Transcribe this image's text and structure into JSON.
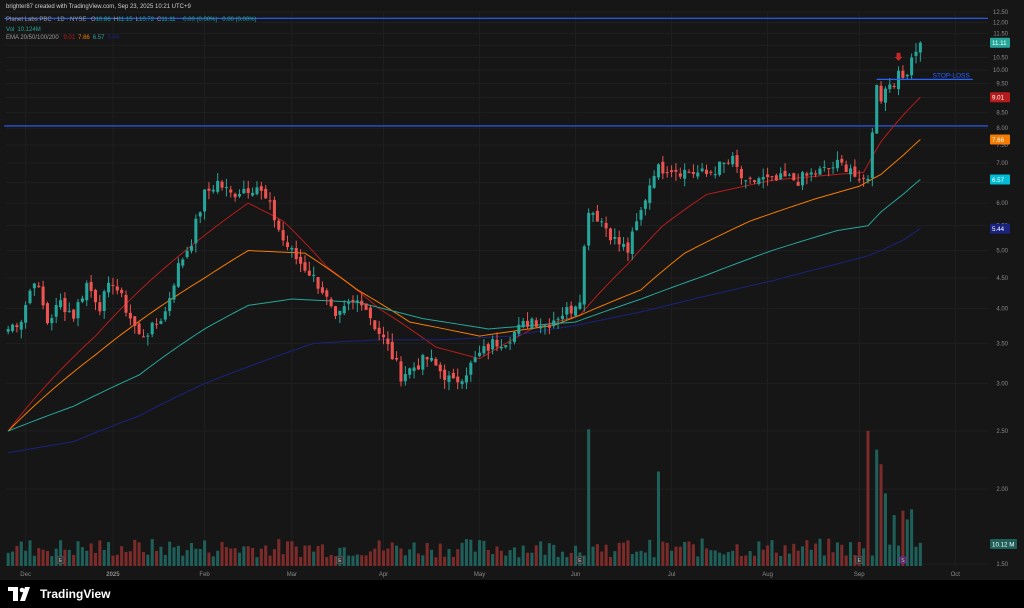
{
  "header": {
    "credit": "brighter87 created with TradingView.com, Sep 23, 2025 10:21 UTC+9",
    "symbol": "Planet Labs PBC · 1D · NYSE",
    "ohlc": [
      {
        "k": "O",
        "v": "10.86"
      },
      {
        "k": "H",
        "v": "11.15"
      },
      {
        "k": "L",
        "v": "10.72"
      },
      {
        "k": "C",
        "v": "11.11"
      }
    ],
    "change": "0.00 (0.00%)",
    "change2": "0.00 (0.00%)",
    "volume_label": "Vol",
    "volume_value": "10.124M",
    "ema_label": "EMA 20/50/100/200",
    "ema_values": [
      "9.01",
      "7.66",
      "6.57",
      "5.44"
    ]
  },
  "footer": {
    "brand": "TradingView"
  },
  "colors": {
    "background": "#161616",
    "up": "#26a69a",
    "down": "#ef5350",
    "vol_up": "#1f5f59",
    "vol_down": "#7a2b2a",
    "ema20": "#b71c1c",
    "ema50": "#f57c00",
    "ema100": "#26a69a",
    "ema200": "#1a237e",
    "hline": "#2962ff",
    "stoploss": "#2962ff"
  },
  "chart_data": {
    "type": "candlestick",
    "y_scale": "log",
    "ylim": [
      1.5,
      12.5
    ],
    "y_ticks": [
      "12.50",
      "12.00",
      "11.50",
      "11.00",
      "10.50",
      "10.00",
      "9.50",
      "9.00",
      "8.50",
      "8.00",
      "7.50",
      "7.00",
      "6.50",
      "6.00",
      "5.50",
      "5.00",
      "4.50",
      "4.00",
      "3.50",
      "3.00",
      "2.50",
      "2.00",
      "1.50"
    ],
    "x_labels": [
      "Dec",
      "2025",
      "Feb",
      "Mar",
      "Apr",
      "May",
      "Jun",
      "Jul",
      "Aug",
      "Sep",
      "Oct"
    ],
    "x_label_bars": [
      4,
      24,
      45,
      65,
      86,
      108,
      130,
      152,
      174,
      195,
      217
    ],
    "bars_total": 225,
    "bars_visible": 210,
    "anchors": [
      [
        0,
        3.7
      ],
      [
        3,
        3.85
      ],
      [
        6,
        4.5
      ],
      [
        9,
        3.8
      ],
      [
        12,
        4.1
      ],
      [
        15,
        3.9
      ],
      [
        18,
        4.4
      ],
      [
        21,
        4.05
      ],
      [
        24,
        4.45
      ],
      [
        27,
        4.0
      ],
      [
        30,
        3.6
      ],
      [
        33,
        3.7
      ],
      [
        36,
        3.95
      ],
      [
        39,
        4.7
      ],
      [
        42,
        5.2
      ],
      [
        45,
        6.2
      ],
      [
        48,
        6.5
      ],
      [
        51,
        6.2
      ],
      [
        54,
        6.35
      ],
      [
        57,
        6.4
      ],
      [
        60,
        5.9
      ],
      [
        63,
        5.2
      ],
      [
        66,
        4.85
      ],
      [
        69,
        4.6
      ],
      [
        72,
        4.3
      ],
      [
        75,
        3.8
      ],
      [
        78,
        4.05
      ],
      [
        81,
        4.15
      ],
      [
        84,
        3.75
      ],
      [
        87,
        3.45
      ],
      [
        90,
        3.1
      ],
      [
        93,
        3.2
      ],
      [
        96,
        3.3
      ],
      [
        99,
        3.15
      ],
      [
        102,
        3.0
      ],
      [
        105,
        3.15
      ],
      [
        108,
        3.35
      ],
      [
        111,
        3.5
      ],
      [
        114,
        3.55
      ],
      [
        117,
        3.7
      ],
      [
        120,
        3.85
      ],
      [
        123,
        3.75
      ],
      [
        126,
        3.9
      ],
      [
        129,
        4.0
      ],
      [
        131,
        4.2
      ],
      [
        133,
        5.9
      ],
      [
        136,
        5.6
      ],
      [
        139,
        5.2
      ],
      [
        142,
        5.0
      ],
      [
        145,
        5.8
      ],
      [
        148,
        6.8
      ],
      [
        151,
        6.9
      ],
      [
        154,
        6.8
      ],
      [
        157,
        6.75
      ],
      [
        160,
        6.7
      ],
      [
        163,
        6.9
      ],
      [
        166,
        7.05
      ],
      [
        169,
        6.4
      ],
      [
        172,
        6.6
      ],
      [
        175,
        6.5
      ],
      [
        178,
        6.6
      ],
      [
        181,
        6.55
      ],
      [
        184,
        6.7
      ],
      [
        187,
        6.8
      ],
      [
        190,
        6.95
      ],
      [
        193,
        6.9
      ],
      [
        195,
        6.4
      ],
      [
        197,
        6.7
      ],
      [
        198,
        7.8
      ],
      [
        199,
        9.6
      ],
      [
        200,
        9.0
      ],
      [
        201,
        9.3
      ],
      [
        202,
        9.55
      ],
      [
        203,
        9.6
      ],
      [
        204,
        9.75
      ],
      [
        205,
        9.7
      ],
      [
        206,
        10.05
      ],
      [
        207,
        10.55
      ],
      [
        208,
        10.9
      ],
      [
        209,
        11.11
      ]
    ],
    "volume_ylim": [
      0,
      11
    ],
    "volume_spikes": [
      [
        133,
        9.4
      ],
      [
        149,
        6.5
      ],
      [
        197,
        9.3
      ],
      [
        199,
        8.0
      ],
      [
        200,
        7.0
      ],
      [
        201,
        5.0
      ],
      [
        203,
        3.5
      ],
      [
        205,
        3.8
      ],
      [
        206,
        3.2
      ],
      [
        207,
        3.9
      ]
    ],
    "volume_markers": [
      {
        "bar": 12,
        "letter": "E",
        "type": "earnings"
      },
      {
        "bar": 76,
        "letter": "E",
        "type": "earnings"
      },
      {
        "bar": 131,
        "letter": "E",
        "type": "earnings"
      },
      {
        "bar": 195,
        "letter": "E",
        "type": "earnings"
      },
      {
        "bar": 205,
        "letter": "S",
        "type": "split"
      }
    ],
    "ema_series": [
      {
        "name": "EMA 20",
        "last": 9.01,
        "anchors": [
          [
            0,
            2.5
          ],
          [
            20,
            3.6
          ],
          [
            45,
            5.3
          ],
          [
            55,
            6.0
          ],
          [
            63,
            5.6
          ],
          [
            73,
            4.7
          ],
          [
            85,
            4.0
          ],
          [
            98,
            3.45
          ],
          [
            108,
            3.3
          ],
          [
            120,
            3.7
          ],
          [
            131,
            3.9
          ],
          [
            142,
            4.75
          ],
          [
            150,
            5.5
          ],
          [
            160,
            6.2
          ],
          [
            175,
            6.55
          ],
          [
            190,
            6.7
          ],
          [
            196,
            6.75
          ],
          [
            200,
            7.6
          ],
          [
            205,
            8.4
          ],
          [
            209,
            9.01
          ]
        ]
      },
      {
        "name": "EMA 50",
        "last": 7.66,
        "anchors": [
          [
            0,
            2.5
          ],
          [
            20,
            3.35
          ],
          [
            45,
            4.5
          ],
          [
            55,
            5.0
          ],
          [
            68,
            4.95
          ],
          [
            80,
            4.3
          ],
          [
            92,
            3.8
          ],
          [
            108,
            3.6
          ],
          [
            125,
            3.75
          ],
          [
            131,
            3.9
          ],
          [
            145,
            4.3
          ],
          [
            155,
            4.95
          ],
          [
            170,
            5.6
          ],
          [
            185,
            6.1
          ],
          [
            195,
            6.4
          ],
          [
            200,
            6.7
          ],
          [
            205,
            7.2
          ],
          [
            209,
            7.66
          ]
        ]
      },
      {
        "name": "EMA 100",
        "last": 6.57,
        "anchors": [
          [
            0,
            2.5
          ],
          [
            15,
            2.75
          ],
          [
            30,
            3.1
          ],
          [
            45,
            3.7
          ],
          [
            55,
            4.05
          ],
          [
            65,
            4.15
          ],
          [
            80,
            4.1
          ],
          [
            95,
            3.85
          ],
          [
            110,
            3.7
          ],
          [
            130,
            3.8
          ],
          [
            145,
            4.15
          ],
          [
            160,
            4.55
          ],
          [
            175,
            5.0
          ],
          [
            190,
            5.4
          ],
          [
            197,
            5.5
          ],
          [
            200,
            5.8
          ],
          [
            205,
            6.2
          ],
          [
            209,
            6.57
          ]
        ]
      },
      {
        "name": "EMA 200",
        "last": 5.44,
        "anchors": [
          [
            0,
            2.3
          ],
          [
            15,
            2.4
          ],
          [
            30,
            2.65
          ],
          [
            45,
            3.0
          ],
          [
            60,
            3.3
          ],
          [
            70,
            3.5
          ],
          [
            85,
            3.55
          ],
          [
            100,
            3.55
          ],
          [
            115,
            3.6
          ],
          [
            130,
            3.75
          ],
          [
            145,
            3.95
          ],
          [
            160,
            4.2
          ],
          [
            175,
            4.45
          ],
          [
            190,
            4.75
          ],
          [
            197,
            4.9
          ],
          [
            200,
            5.0
          ],
          [
            205,
            5.2
          ],
          [
            209,
            5.44
          ]
        ]
      }
    ],
    "price_labels": [
      {
        "value": "11.11",
        "price": 11.11,
        "color": "#26a69a"
      },
      {
        "value": "9.01",
        "price": 9.01,
        "color": "#b71c1c"
      },
      {
        "value": "7.66",
        "price": 7.66,
        "color": "#f57c00"
      },
      {
        "value": "6.57",
        "price": 6.57,
        "color": "#00bcd4"
      },
      {
        "value": "5.44",
        "price": 5.44,
        "color": "#1a237e"
      },
      {
        "value": "10.12 M",
        "price": null,
        "color": "#1f5f59"
      }
    ],
    "horizontal_lines": [
      {
        "price": 12.2,
        "start_bar": 0
      },
      {
        "price": 8.07,
        "start_bar": 0
      }
    ],
    "stop_loss": {
      "label": "STOP-LOSS",
      "price": 9.65,
      "start_bar": 199,
      "end_bar": 221
    },
    "entry_arrow": {
      "bar": 204,
      "price": 10.4
    }
  }
}
